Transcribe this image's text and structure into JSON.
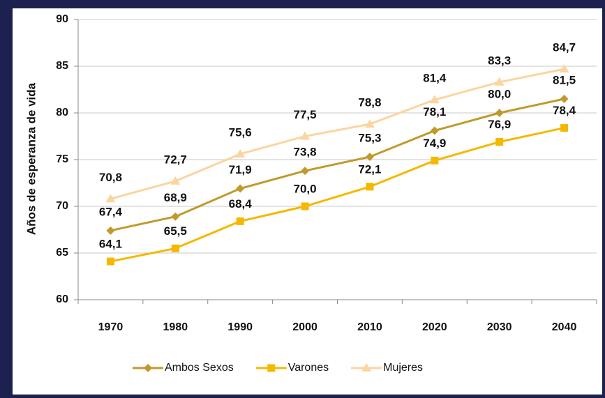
{
  "chart_data": {
    "type": "line",
    "y_label": "Años de esperanza de vida",
    "categories": [
      "1970",
      "1980",
      "1990",
      "2000",
      "2010",
      "2020",
      "2030",
      "2040"
    ],
    "ylim": [
      60,
      90
    ],
    "yticks": [
      60,
      65,
      70,
      75,
      80,
      85,
      90
    ],
    "grid": true,
    "legend": "bottom",
    "series": [
      {
        "name": "Ambos Sexos",
        "color": "#c09a2a",
        "marker": "diamond",
        "values": [
          67.4,
          68.9,
          71.9,
          73.8,
          75.3,
          78.1,
          80.0,
          81.5
        ],
        "value_labels": [
          "67,4",
          "68,9",
          "71,9",
          "73,8",
          "75,3",
          "78,1",
          "80,0",
          "81,5"
        ]
      },
      {
        "name": "Varones",
        "color": "#f5b800",
        "marker": "square",
        "values": [
          64.1,
          65.5,
          68.4,
          70.0,
          72.1,
          74.9,
          76.9,
          78.4
        ],
        "value_labels": [
          "64,1",
          "65,5",
          "68,4",
          "70,0",
          "72,1",
          "74,9",
          "76,9",
          "78,4"
        ]
      },
      {
        "name": "Mujeres",
        "color": "#fbd5a0",
        "marker": "triangle",
        "values": [
          70.8,
          72.7,
          75.6,
          77.5,
          78.8,
          81.4,
          83.3,
          84.7
        ],
        "value_labels": [
          "70,8",
          "72,7",
          "75,6",
          "77,5",
          "78,8",
          "81,4",
          "83,3",
          "84,7"
        ]
      }
    ]
  }
}
